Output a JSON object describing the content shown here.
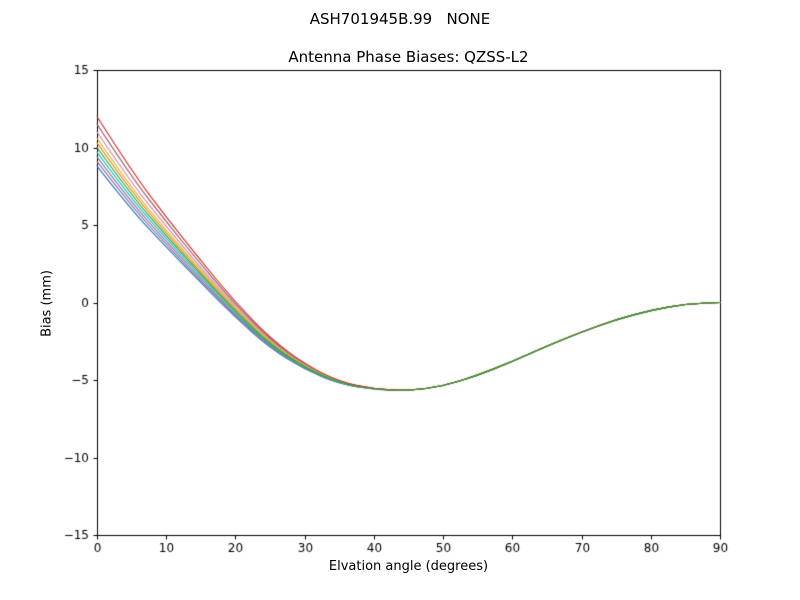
{
  "chart_data": {
    "type": "line",
    "title": "ASH701945B.99   NONE",
    "subtitle": "Antenna Phase Biases: QZSS-L2",
    "xlabel": "Elvation angle (degrees)",
    "ylabel": "Bias (mm)",
    "xlim": [
      0,
      90
    ],
    "ylim": [
      -15,
      15
    ],
    "xticks": [
      0,
      10,
      20,
      30,
      40,
      50,
      60,
      70,
      80,
      90
    ],
    "xtick_labels": [
      "0",
      "10",
      "20",
      "30",
      "40",
      "50",
      "60",
      "70",
      "80",
      "90"
    ],
    "yticks": [
      -15,
      -10,
      -5,
      0,
      5,
      10,
      15
    ],
    "ytick_labels": [
      "−15",
      "−10",
      "−5",
      "0",
      "5",
      "10",
      "15"
    ],
    "grid": false,
    "legend": "none",
    "axis_color": "#000000",
    "x": [
      0,
      5,
      10,
      15,
      20,
      25,
      30,
      35,
      40,
      45,
      50,
      55,
      60,
      65,
      70,
      75,
      80,
      85,
      90
    ],
    "series": [
      {
        "name": "series-1",
        "color": "#1f77b4",
        "values": [
          8.8,
          5.95,
          3.57,
          1.27,
          -0.97,
          -2.94,
          -4.33,
          -5.26,
          -5.61,
          -5.7,
          -5.4,
          -4.7,
          -3.8,
          -2.8,
          -1.9,
          -1.1,
          -0.5,
          -0.1,
          0.0
        ]
      },
      {
        "name": "series-2",
        "color": "#ff7f0e",
        "values": [
          10.3,
          7.14,
          4.48,
          1.93,
          -0.51,
          -2.64,
          -4.17,
          -5.19,
          -5.6,
          -5.7,
          -5.4,
          -4.7,
          -3.8,
          -2.8,
          -1.9,
          -1.1,
          -0.5,
          -0.1,
          0.0
        ]
      },
      {
        "name": "series-3",
        "color": "#9467bd",
        "values": [
          9.1,
          6.19,
          3.76,
          1.4,
          -0.88,
          -2.88,
          -4.3,
          -5.24,
          -5.61,
          -5.7,
          -5.4,
          -4.7,
          -3.8,
          -2.8,
          -1.9,
          -1.1,
          -0.5,
          -0.1,
          0.0
        ]
      },
      {
        "name": "series-4",
        "color": "#8c564b",
        "values": [
          11.5,
          8.09,
          5.21,
          2.47,
          -0.14,
          -2.4,
          -4.03,
          -5.13,
          -5.58,
          -5.7,
          -5.4,
          -4.7,
          -3.8,
          -2.8,
          -1.9,
          -1.1,
          -0.5,
          -0.1,
          0.0
        ]
      },
      {
        "name": "series-5",
        "color": "#e377c2",
        "values": [
          11.0,
          7.69,
          4.91,
          2.24,
          -0.29,
          -2.5,
          -4.09,
          -5.15,
          -5.59,
          -5.7,
          -5.4,
          -4.7,
          -3.8,
          -2.8,
          -1.9,
          -1.1,
          -0.5,
          -0.1,
          0.0
        ]
      },
      {
        "name": "series-6",
        "color": "#7f7f7f",
        "values": [
          9.4,
          6.43,
          3.94,
          1.53,
          -0.79,
          -2.82,
          -4.27,
          -5.23,
          -5.61,
          -5.7,
          -5.4,
          -4.7,
          -3.8,
          -2.8,
          -1.9,
          -1.1,
          -0.5,
          -0.1,
          0.0
        ]
      },
      {
        "name": "series-7",
        "color": "#bcbd22",
        "values": [
          10.6,
          7.37,
          4.66,
          2.07,
          -0.41,
          -2.58,
          -4.13,
          -5.17,
          -5.59,
          -5.7,
          -5.4,
          -4.7,
          -3.8,
          -2.8,
          -1.9,
          -1.1,
          -0.5,
          -0.1,
          0.0
        ]
      },
      {
        "name": "series-8",
        "color": "#17becf",
        "values": [
          9.7,
          6.66,
          4.12,
          1.67,
          -0.69,
          -2.76,
          -4.23,
          -5.21,
          -5.6,
          -5.7,
          -5.4,
          -4.7,
          -3.8,
          -2.8,
          -1.9,
          -1.1,
          -0.5,
          -0.1,
          0.0
        ]
      },
      {
        "name": "series-9",
        "color": "#d62728",
        "values": [
          12.0,
          8.48,
          5.51,
          2.69,
          0.02,
          -2.3,
          -3.98,
          -5.1,
          -5.58,
          -5.7,
          -5.4,
          -4.7,
          -3.8,
          -2.8,
          -1.9,
          -1.1,
          -0.5,
          -0.1,
          0.0
        ]
      },
      {
        "name": "series-10",
        "color": "#2ca02c",
        "values": [
          10.0,
          6.9,
          4.3,
          1.8,
          -0.6,
          -2.7,
          -4.2,
          -5.2,
          -5.6,
          -5.7,
          -5.4,
          -4.7,
          -3.8,
          -2.8,
          -1.9,
          -1.1,
          -0.5,
          -0.1,
          0.0
        ]
      }
    ]
  }
}
